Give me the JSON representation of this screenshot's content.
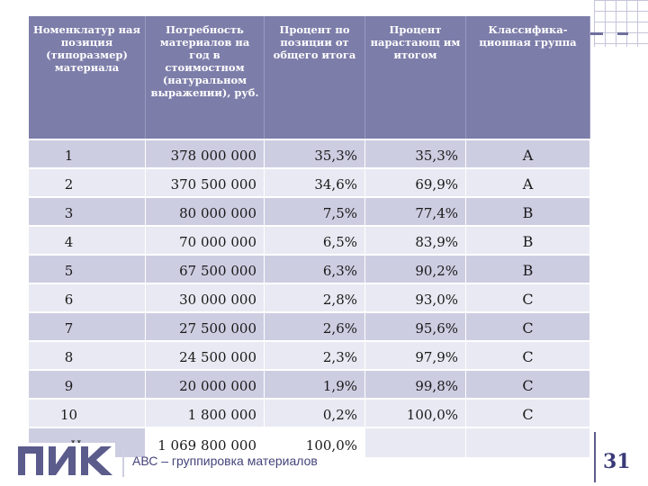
{
  "table": {
    "headers": [
      "Номенклатур ная позиция (типоразмер) материала",
      "Потребность материалов на год в стоимостном (натуральном выражении), руб.",
      "Процент по позиции от общего итога",
      "Процент нарастающ им итогом",
      "Классифика- ционная группа"
    ],
    "rows": [
      [
        "1",
        "378 000 000",
        "35,3%",
        "35,3%",
        "А"
      ],
      [
        "2",
        "370 500 000",
        "34,6%",
        "69,9%",
        "А"
      ],
      [
        "3",
        "80 000 000",
        "7,5%",
        "77,4%",
        "В"
      ],
      [
        "4",
        "70 000 000",
        "6,5%",
        "83,9%",
        "В"
      ],
      [
        "5",
        "67 500 000",
        "6,3%",
        "90,2%",
        "В"
      ],
      [
        "6",
        "30 000 000",
        "2,8%",
        "93,0%",
        "С"
      ],
      [
        "7",
        "27 500 000",
        "2,6%",
        "95,6%",
        "С"
      ],
      [
        "8",
        "24 500 000",
        "2,3%",
        "97,9%",
        "С"
      ],
      [
        "9",
        "20 000 000",
        "1,9%",
        "99,8%",
        "С"
      ],
      [
        "10",
        "1 800 000",
        "0,2%",
        "100,0%",
        "С"
      ]
    ],
    "total": [
      "Итого",
      "1 069 800 000",
      "100,0%",
      "",
      ""
    ]
  },
  "footer": {
    "logo_text": "ПИК",
    "title": "АВС – группировка материалов",
    "page_number": "31"
  },
  "colors": {
    "header_bg": "#7d7daa",
    "row_dark": "#cdcde2",
    "row_light": "#e9e9f3",
    "accent": "#5b5b8c"
  }
}
